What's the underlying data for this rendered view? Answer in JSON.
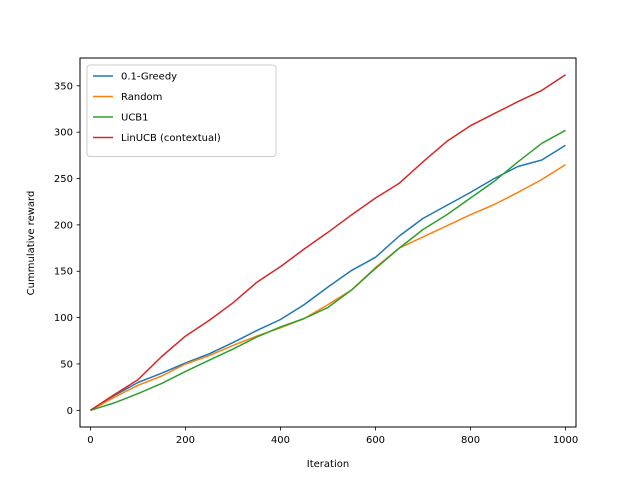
{
  "chart_data": {
    "type": "line",
    "title": "",
    "xlabel": "Iteration",
    "ylabel": "Cummulative reward",
    "xlim": [
      -22,
      1022
    ],
    "ylim": [
      -18,
      380
    ],
    "xticks": [
      0,
      200,
      400,
      600,
      800,
      1000
    ],
    "yticks": [
      0,
      50,
      100,
      150,
      200,
      250,
      300,
      350
    ],
    "grid": false,
    "legend_position": "top-left",
    "series": [
      {
        "name": "0.1-Greedy",
        "color": "#1f77b4",
        "x": [
          0,
          50,
          100,
          150,
          200,
          250,
          300,
          350,
          400,
          450,
          500,
          550,
          600,
          650,
          700,
          750,
          800,
          850,
          900,
          950,
          1000
        ],
        "y": [
          0,
          16,
          30,
          40,
          51,
          61,
          73,
          86,
          98,
          114,
          133,
          151,
          165,
          188,
          207,
          221,
          235,
          250,
          263,
          270,
          286
        ]
      },
      {
        "name": "Random",
        "color": "#ff7f0e",
        "x": [
          0,
          50,
          100,
          150,
          200,
          250,
          300,
          350,
          400,
          450,
          500,
          550,
          600,
          650,
          700,
          750,
          800,
          850,
          900,
          950,
          1000
        ],
        "y": [
          0,
          14,
          27,
          37,
          50,
          59,
          70,
          80,
          89,
          99,
          114,
          130,
          154,
          175,
          187,
          199,
          211,
          222,
          235,
          249,
          265
        ]
      },
      {
        "name": "UCB1",
        "color": "#2ca02c",
        "x": [
          0,
          50,
          100,
          150,
          200,
          250,
          300,
          350,
          400,
          450,
          500,
          550,
          600,
          650,
          700,
          750,
          800,
          850,
          900,
          950,
          1000
        ],
        "y": [
          0,
          8,
          18,
          29,
          42,
          54,
          66,
          79,
          90,
          99,
          111,
          130,
          153,
          175,
          195,
          211,
          229,
          247,
          268,
          288,
          302
        ]
      },
      {
        "name": "LinUCB (contextual)",
        "color": "#d62728",
        "x": [
          0,
          50,
          100,
          150,
          200,
          250,
          300,
          350,
          400,
          450,
          500,
          550,
          600,
          650,
          700,
          750,
          800,
          850,
          900,
          950,
          1000
        ],
        "y": [
          0,
          17,
          33,
          58,
          80,
          97,
          116,
          138,
          155,
          174,
          192,
          211,
          229,
          245,
          268,
          290,
          307,
          320,
          333,
          345,
          362
        ]
      }
    ]
  }
}
